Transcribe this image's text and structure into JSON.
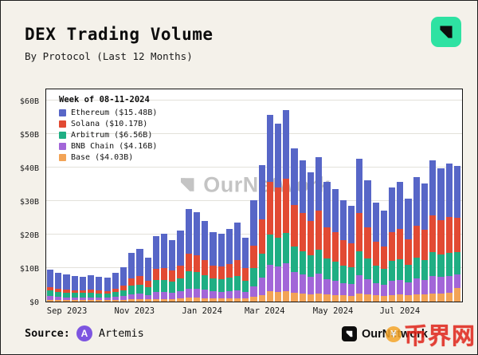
{
  "header": {
    "title": "DEX Trading Volume",
    "subtitle": "By Protocol (Last 12 Months)"
  },
  "legend": {
    "title": "Week of 08-11-2024",
    "items": [
      {
        "label": "Ethereum ($15.48B)",
        "color": "#5766c7"
      },
      {
        "label": "Solana ($10.17B)",
        "color": "#e24a33"
      },
      {
        "label": "Arbitrum ($6.56B)",
        "color": "#1fae83"
      },
      {
        "label": "BNB Chain ($4.16B)",
        "color": "#a266d8"
      },
      {
        "label": "Base ($4.03B)",
        "color": "#f2a356"
      }
    ]
  },
  "watermark": {
    "text": "OurNetwork"
  },
  "footer": {
    "source_label": "Source:",
    "source_name": "Artemis",
    "brand": "OurNetwork"
  },
  "overlay_watermark": {
    "icon_char": "¥",
    "text": "币界网"
  },
  "chart_data": {
    "type": "bar",
    "stacked": true,
    "title": "DEX Trading Volume",
    "subtitle": "By Protocol (Last 12 Months)",
    "unit": "$B",
    "grid": true,
    "legend_position": "top-left",
    "ylim": [
      0,
      60
    ],
    "weeks": 51,
    "yticks": [
      {
        "label": "$0",
        "value": 0
      },
      {
        "label": "$10B",
        "value": 10
      },
      {
        "label": "$20B",
        "value": 20
      },
      {
        "label": "$30B",
        "value": 30
      },
      {
        "label": "$40B",
        "value": 40
      },
      {
        "label": "$50B",
        "value": 50
      },
      {
        "label": "$60B",
        "value": 60
      }
    ],
    "xticks": [
      {
        "label": "Sep 2023",
        "week_index": 2
      },
      {
        "label": "Nov 2023",
        "week_index": 10.3
      },
      {
        "label": "Jan 2024",
        "week_index": 18.6
      },
      {
        "label": "Mar 2024",
        "week_index": 26.3
      },
      {
        "label": "May 2024",
        "week_index": 34.7
      },
      {
        "label": "Jul 2024",
        "week_index": 42.9
      }
    ],
    "series": [
      {
        "name": "Ethereum",
        "color": "#5766c7",
        "latest": "$15.48B",
        "values": [
          5.3,
          4.8,
          4.5,
          4.3,
          4.1,
          4.4,
          4.1,
          3.9,
          4.7,
          5.5,
          7.6,
          8.0,
          6.8,
          9.8,
          10.0,
          9.0,
          10.4,
          13.4,
          12.9,
          11.7,
          10.0,
          9.7,
          10.4,
          11.3,
          9.1,
          13.5,
          16.2,
          20.0,
          19.1,
          20.5,
          16.9,
          15.6,
          14.5,
          16.0,
          13.6,
          13.0,
          11.8,
          11.3,
          16.3,
          14.0,
          11.7,
          10.8,
          13.3,
          13.9,
          12.1,
          14.5,
          13.7,
          16.3,
          15.3,
          15.8,
          15.48
        ]
      },
      {
        "name": "Solana",
        "color": "#e24a33",
        "latest": "$10.17B",
        "values": [
          0.9,
          0.8,
          0.8,
          0.7,
          0.7,
          0.8,
          0.8,
          0.8,
          1.0,
          1.3,
          2.2,
          2.5,
          2.1,
          3.4,
          3.6,
          3.3,
          3.9,
          5.2,
          5.0,
          4.5,
          3.8,
          3.8,
          4.1,
          4.6,
          3.7,
          6.5,
          10.2,
          15.6,
          14.9,
          16.1,
          12.4,
          11.4,
          10.2,
          11.7,
          9.2,
          8.6,
          7.5,
          7.0,
          11.3,
          9.2,
          7.3,
          6.6,
          8.7,
          9.1,
          7.5,
          9.5,
          9.0,
          11.0,
          10.3,
          10.8,
          10.17
        ]
      },
      {
        "name": "Arbitrum",
        "color": "#1fae83",
        "latest": "$6.56B",
        "values": [
          1.7,
          1.5,
          1.4,
          1.3,
          1.3,
          1.4,
          1.3,
          1.2,
          1.5,
          1.8,
          2.6,
          2.8,
          2.3,
          3.6,
          3.7,
          3.3,
          3.9,
          5.1,
          4.9,
          4.4,
          3.8,
          3.7,
          4.0,
          4.3,
          3.5,
          5.5,
          7.1,
          9.0,
          8.6,
          9.2,
          7.5,
          7.0,
          6.5,
          7.1,
          6.1,
          5.8,
          5.3,
          5.1,
          7.2,
          6.2,
          5.2,
          4.8,
          5.9,
          6.1,
          5.4,
          6.3,
          6.0,
          7.1,
          6.7,
          6.9,
          6.56
        ]
      },
      {
        "name": "BNB Chain",
        "color": "#a266d8",
        "latest": "$4.16B",
        "values": [
          1.1,
          1.0,
          0.9,
          0.9,
          0.9,
          0.9,
          0.8,
          0.8,
          1.0,
          1.1,
          1.5,
          1.6,
          1.3,
          2.0,
          2.0,
          1.8,
          2.1,
          2.8,
          2.7,
          2.5,
          2.1,
          2.0,
          2.2,
          2.4,
          1.9,
          3.1,
          5.1,
          8.0,
          7.6,
          8.2,
          6.3,
          5.8,
          5.2,
          5.9,
          4.6,
          4.2,
          3.7,
          3.5,
          5.5,
          4.5,
          3.6,
          3.2,
          4.2,
          4.4,
          3.7,
          4.6,
          4.3,
          5.3,
          4.9,
          5.0,
          4.16
        ]
      },
      {
        "name": "Base",
        "color": "#f2a356",
        "latest": "$4.03B",
        "values": [
          0.5,
          0.4,
          0.4,
          0.4,
          0.4,
          0.4,
          0.4,
          0.4,
          0.4,
          0.5,
          0.7,
          0.7,
          0.6,
          0.8,
          0.8,
          0.8,
          0.9,
          1.1,
          1.1,
          1.0,
          0.9,
          0.9,
          0.9,
          1.0,
          0.9,
          1.5,
          2.0,
          3.0,
          2.9,
          3.1,
          2.5,
          2.3,
          2.2,
          2.4,
          2.1,
          2.0,
          1.8,
          1.7,
          2.3,
          2.2,
          1.8,
          1.7,
          2.0,
          2.1,
          1.9,
          2.2,
          2.1,
          2.4,
          2.4,
          2.6,
          4.03
        ]
      }
    ]
  }
}
